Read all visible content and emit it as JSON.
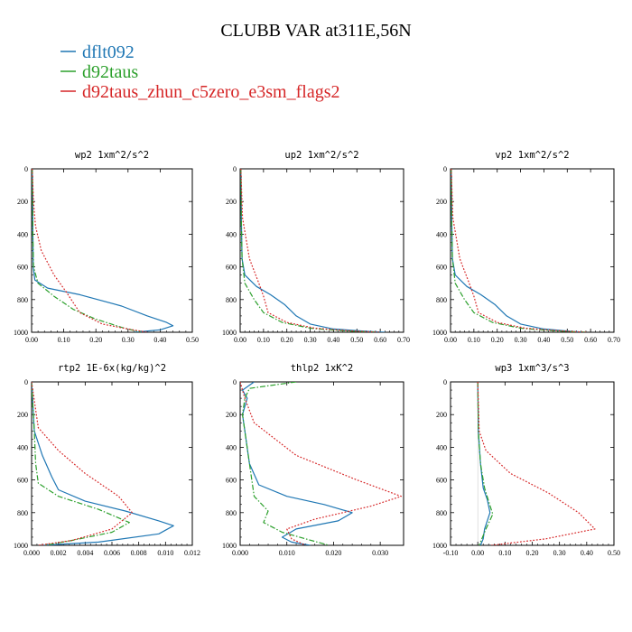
{
  "title": "CLUBB VAR at311E,56N",
  "legend": [
    {
      "label": "dflt092",
      "color": "#1f77b4",
      "dash": "solid"
    },
    {
      "label": "d92taus",
      "color": "#2ca02c",
      "dash": "dashdot"
    },
    {
      "label": "d92taus_zhun_c5zero_e3sm_flags2",
      "color": "#d62728",
      "dash": "dotted"
    }
  ],
  "chart_data": [
    {
      "type": "line",
      "title": "wp2  1xm^2/s^2",
      "xlim": [
        0,
        0.5
      ],
      "ylim": [
        1000,
        0
      ],
      "xticks": [
        0,
        0.1,
        0.2,
        0.3,
        0.4,
        0.5
      ],
      "xtick_labels": [
        "0.00",
        "0.10",
        "0.20",
        "0.30",
        "0.40",
        "0.50"
      ],
      "yticks": [
        0,
        200,
        400,
        600,
        800,
        1000
      ],
      "series": [
        {
          "name": "dflt092",
          "x": [
            0.002,
            0.003,
            0.004,
            0.005,
            0.01,
            0.05,
            0.15,
            0.28,
            0.36,
            0.42,
            0.44,
            0.4,
            0.32
          ],
          "y": [
            0,
            200,
            400,
            600,
            680,
            730,
            770,
            840,
            900,
            940,
            960,
            985,
            1000
          ]
        },
        {
          "name": "d92taus",
          "x": [
            0.002,
            0.003,
            0.004,
            0.006,
            0.02,
            0.07,
            0.13,
            0.2,
            0.28,
            0.34
          ],
          "y": [
            0,
            200,
            400,
            600,
            700,
            780,
            860,
            920,
            970,
            1000
          ]
        },
        {
          "name": "d92taus_zhun_c5zero_e3sm_flags2",
          "x": [
            0.002,
            0.006,
            0.012,
            0.03,
            0.07,
            0.11,
            0.15,
            0.22,
            0.3,
            0.36
          ],
          "y": [
            0,
            200,
            350,
            500,
            650,
            760,
            880,
            950,
            980,
            1000
          ]
        }
      ]
    },
    {
      "type": "line",
      "title": "up2  1xm^2/s^2",
      "xlim": [
        0,
        0.7
      ],
      "ylim": [
        1000,
        0
      ],
      "xticks": [
        0,
        0.1,
        0.2,
        0.3,
        0.4,
        0.5,
        0.6,
        0.7
      ],
      "xtick_labels": [
        "0.00",
        "0.10",
        "0.20",
        "0.30",
        "0.40",
        "0.50",
        "0.60",
        "0.70"
      ],
      "yticks": [
        0,
        200,
        400,
        600,
        800,
        1000
      ],
      "series": [
        {
          "name": "dflt092",
          "x": [
            0.003,
            0.005,
            0.008,
            0.02,
            0.07,
            0.13,
            0.19,
            0.24,
            0.3,
            0.4,
            0.55,
            0.62
          ],
          "y": [
            0,
            300,
            550,
            650,
            720,
            770,
            830,
            900,
            950,
            980,
            995,
            1000
          ]
        },
        {
          "name": "d92taus",
          "x": [
            0.003,
            0.005,
            0.008,
            0.02,
            0.06,
            0.1,
            0.18,
            0.3,
            0.45,
            0.6
          ],
          "y": [
            0,
            300,
            550,
            700,
            800,
            880,
            940,
            975,
            992,
            1000
          ]
        },
        {
          "name": "d92taus_zhun_c5zero_e3sm_flags2",
          "x": [
            0.003,
            0.01,
            0.04,
            0.08,
            0.1,
            0.12,
            0.2,
            0.32,
            0.48,
            0.6
          ],
          "y": [
            0,
            300,
            550,
            700,
            780,
            880,
            940,
            975,
            992,
            1000
          ]
        }
      ]
    },
    {
      "type": "line",
      "title": "vp2  1xm^2/s^2",
      "xlim": [
        0,
        0.7
      ],
      "ylim": [
        1000,
        0
      ],
      "xticks": [
        0,
        0.1,
        0.2,
        0.3,
        0.4,
        0.5,
        0.6,
        0.7
      ],
      "xtick_labels": [
        "0.00",
        "0.10",
        "0.20",
        "0.30",
        "0.40",
        "0.50",
        "0.60",
        "0.70"
      ],
      "yticks": [
        0,
        200,
        400,
        600,
        800,
        1000
      ],
      "series": [
        {
          "name": "dflt092",
          "x": [
            0.003,
            0.005,
            0.008,
            0.02,
            0.07,
            0.13,
            0.19,
            0.24,
            0.3,
            0.4,
            0.52,
            0.58
          ],
          "y": [
            0,
            300,
            550,
            650,
            720,
            770,
            830,
            900,
            950,
            980,
            995,
            1000
          ]
        },
        {
          "name": "d92taus",
          "x": [
            0.003,
            0.005,
            0.008,
            0.02,
            0.06,
            0.1,
            0.18,
            0.3,
            0.45,
            0.58
          ],
          "y": [
            0,
            300,
            550,
            700,
            800,
            880,
            940,
            975,
            992,
            1000
          ]
        },
        {
          "name": "d92taus_zhun_c5zero_e3sm_flags2",
          "x": [
            0.003,
            0.01,
            0.04,
            0.08,
            0.1,
            0.12,
            0.2,
            0.32,
            0.48,
            0.58
          ],
          "y": [
            0,
            300,
            550,
            700,
            780,
            880,
            940,
            975,
            992,
            1000
          ]
        }
      ]
    },
    {
      "type": "line",
      "title": "rtp2  1E-6x(kg/kg)^2",
      "xlim": [
        0,
        0.012
      ],
      "ylim": [
        1000,
        0
      ],
      "xticks": [
        0,
        0.002,
        0.004,
        0.006,
        0.008,
        0.01,
        0.012
      ],
      "xtick_labels": [
        "0.000",
        "0.002",
        "0.004",
        "0.006",
        "0.008",
        "0.010",
        "0.012"
      ],
      "yticks": [
        0,
        200,
        400,
        600,
        800,
        1000
      ],
      "series": [
        {
          "name": "dflt092",
          "x": [
            0.0,
            0.0002,
            0.0008,
            0.0015,
            0.002,
            0.004,
            0.007,
            0.0095,
            0.0106,
            0.0095,
            0.005,
            0.0008
          ],
          "y": [
            0,
            300,
            450,
            580,
            660,
            730,
            790,
            850,
            880,
            930,
            980,
            1000
          ]
        },
        {
          "name": "d92taus",
          "x": [
            0.0,
            0.0002,
            0.0003,
            0.0005,
            0.002,
            0.005,
            0.0073,
            0.006,
            0.003,
            0.001
          ],
          "y": [
            0,
            300,
            500,
            620,
            700,
            780,
            860,
            920,
            970,
            1000
          ]
        },
        {
          "name": "d92taus_zhun_c5zero_e3sm_flags2",
          "x": [
            0.0,
            0.0005,
            0.002,
            0.004,
            0.0065,
            0.0075,
            0.006,
            0.003,
            0.0005
          ],
          "y": [
            0,
            280,
            420,
            560,
            700,
            800,
            900,
            970,
            1000
          ]
        }
      ]
    },
    {
      "type": "line",
      "title": "thlp2  1xK^2",
      "xlim": [
        0,
        0.035
      ],
      "ylim": [
        1000,
        0
      ],
      "xticks": [
        0,
        0.01,
        0.02,
        0.03
      ],
      "xtick_labels": [
        "0.000",
        "0.010",
        "0.020",
        "0.030"
      ],
      "yticks": [
        0,
        200,
        400,
        600,
        800,
        1000
      ],
      "series": [
        {
          "name": "dflt092",
          "x": [
            0.003,
            0.0005,
            0.0015,
            0.0005,
            0.002,
            0.004,
            0.01,
            0.018,
            0.024,
            0.021,
            0.012,
            0.009,
            0.011,
            0.015
          ],
          "y": [
            0,
            50,
            100,
            200,
            500,
            630,
            700,
            750,
            800,
            850,
            900,
            950,
            980,
            1000
          ]
        },
        {
          "name": "d92taus",
          "x": [
            0.012,
            0.002,
            0.001,
            0.0005,
            0.002,
            0.003,
            0.006,
            0.005,
            0.009,
            0.014,
            0.019
          ],
          "y": [
            0,
            40,
            100,
            200,
            500,
            700,
            790,
            860,
            920,
            960,
            1000
          ]
        },
        {
          "name": "d92taus_zhun_c5zero_e3sm_flags2",
          "x": [
            0.0,
            0.001,
            0.003,
            0.012,
            0.025,
            0.0345,
            0.028,
            0.016,
            0.01,
            0.011,
            0.014
          ],
          "y": [
            0,
            100,
            250,
            450,
            600,
            700,
            760,
            840,
            900,
            960,
            1000
          ]
        }
      ]
    },
    {
      "type": "line",
      "title": "wp3  1xm^3/s^3",
      "xlim": [
        -0.1,
        0.5
      ],
      "ylim": [
        1000,
        0
      ],
      "xticks": [
        -0.1,
        0,
        0.1,
        0.2,
        0.3,
        0.4,
        0.5
      ],
      "xtick_labels": [
        "-0.10",
        "0.00",
        "0.10",
        "0.20",
        "0.30",
        "0.40",
        "0.50"
      ],
      "yticks": [
        0,
        200,
        400,
        600,
        800,
        1000
      ],
      "series": [
        {
          "name": "dflt092",
          "x": [
            0.0,
            0.002,
            0.01,
            0.02,
            0.035,
            0.045,
            0.025,
            0.02,
            0.01
          ],
          "y": [
            0,
            300,
            500,
            650,
            720,
            800,
            900,
            960,
            1000
          ]
        },
        {
          "name": "d92taus",
          "x": [
            0.0,
            0.002,
            0.01,
            0.025,
            0.04,
            0.055,
            0.03,
            0.015,
            0.005
          ],
          "y": [
            0,
            300,
            500,
            650,
            730,
            810,
            900,
            960,
            1000
          ]
        },
        {
          "name": "d92taus_zhun_c5zero_e3sm_flags2",
          "x": [
            0.0,
            0.005,
            0.03,
            0.12,
            0.26,
            0.37,
            0.43,
            0.25,
            0.05
          ],
          "y": [
            0,
            300,
            420,
            560,
            680,
            800,
            900,
            960,
            1000
          ]
        }
      ]
    }
  ]
}
